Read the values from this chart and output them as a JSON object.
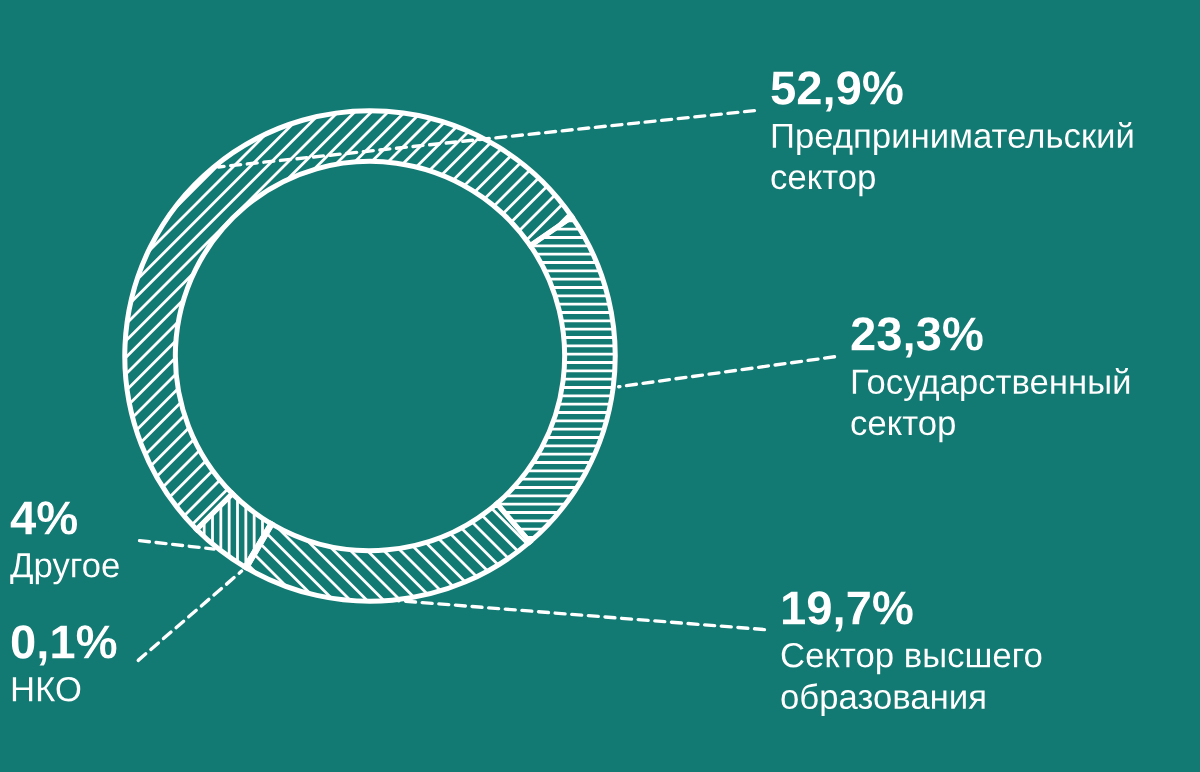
{
  "chart_data": {
    "type": "donut",
    "categories": [
      "Предпринимательский\nсектор",
      "Государственный\nсектор",
      "Сектор высшего\nобразования",
      "НКО",
      "Другое"
    ],
    "values": [
      52.9,
      23.3,
      19.7,
      0.1,
      4
    ],
    "value_labels": [
      "52,9%",
      "23,3%",
      "19,7%",
      "0,1%",
      "4%"
    ],
    "colors": [
      "#ffffff",
      "#ffffff",
      "#ffffff",
      "#ffffff",
      "#ffffff"
    ],
    "legend": false
  }
}
